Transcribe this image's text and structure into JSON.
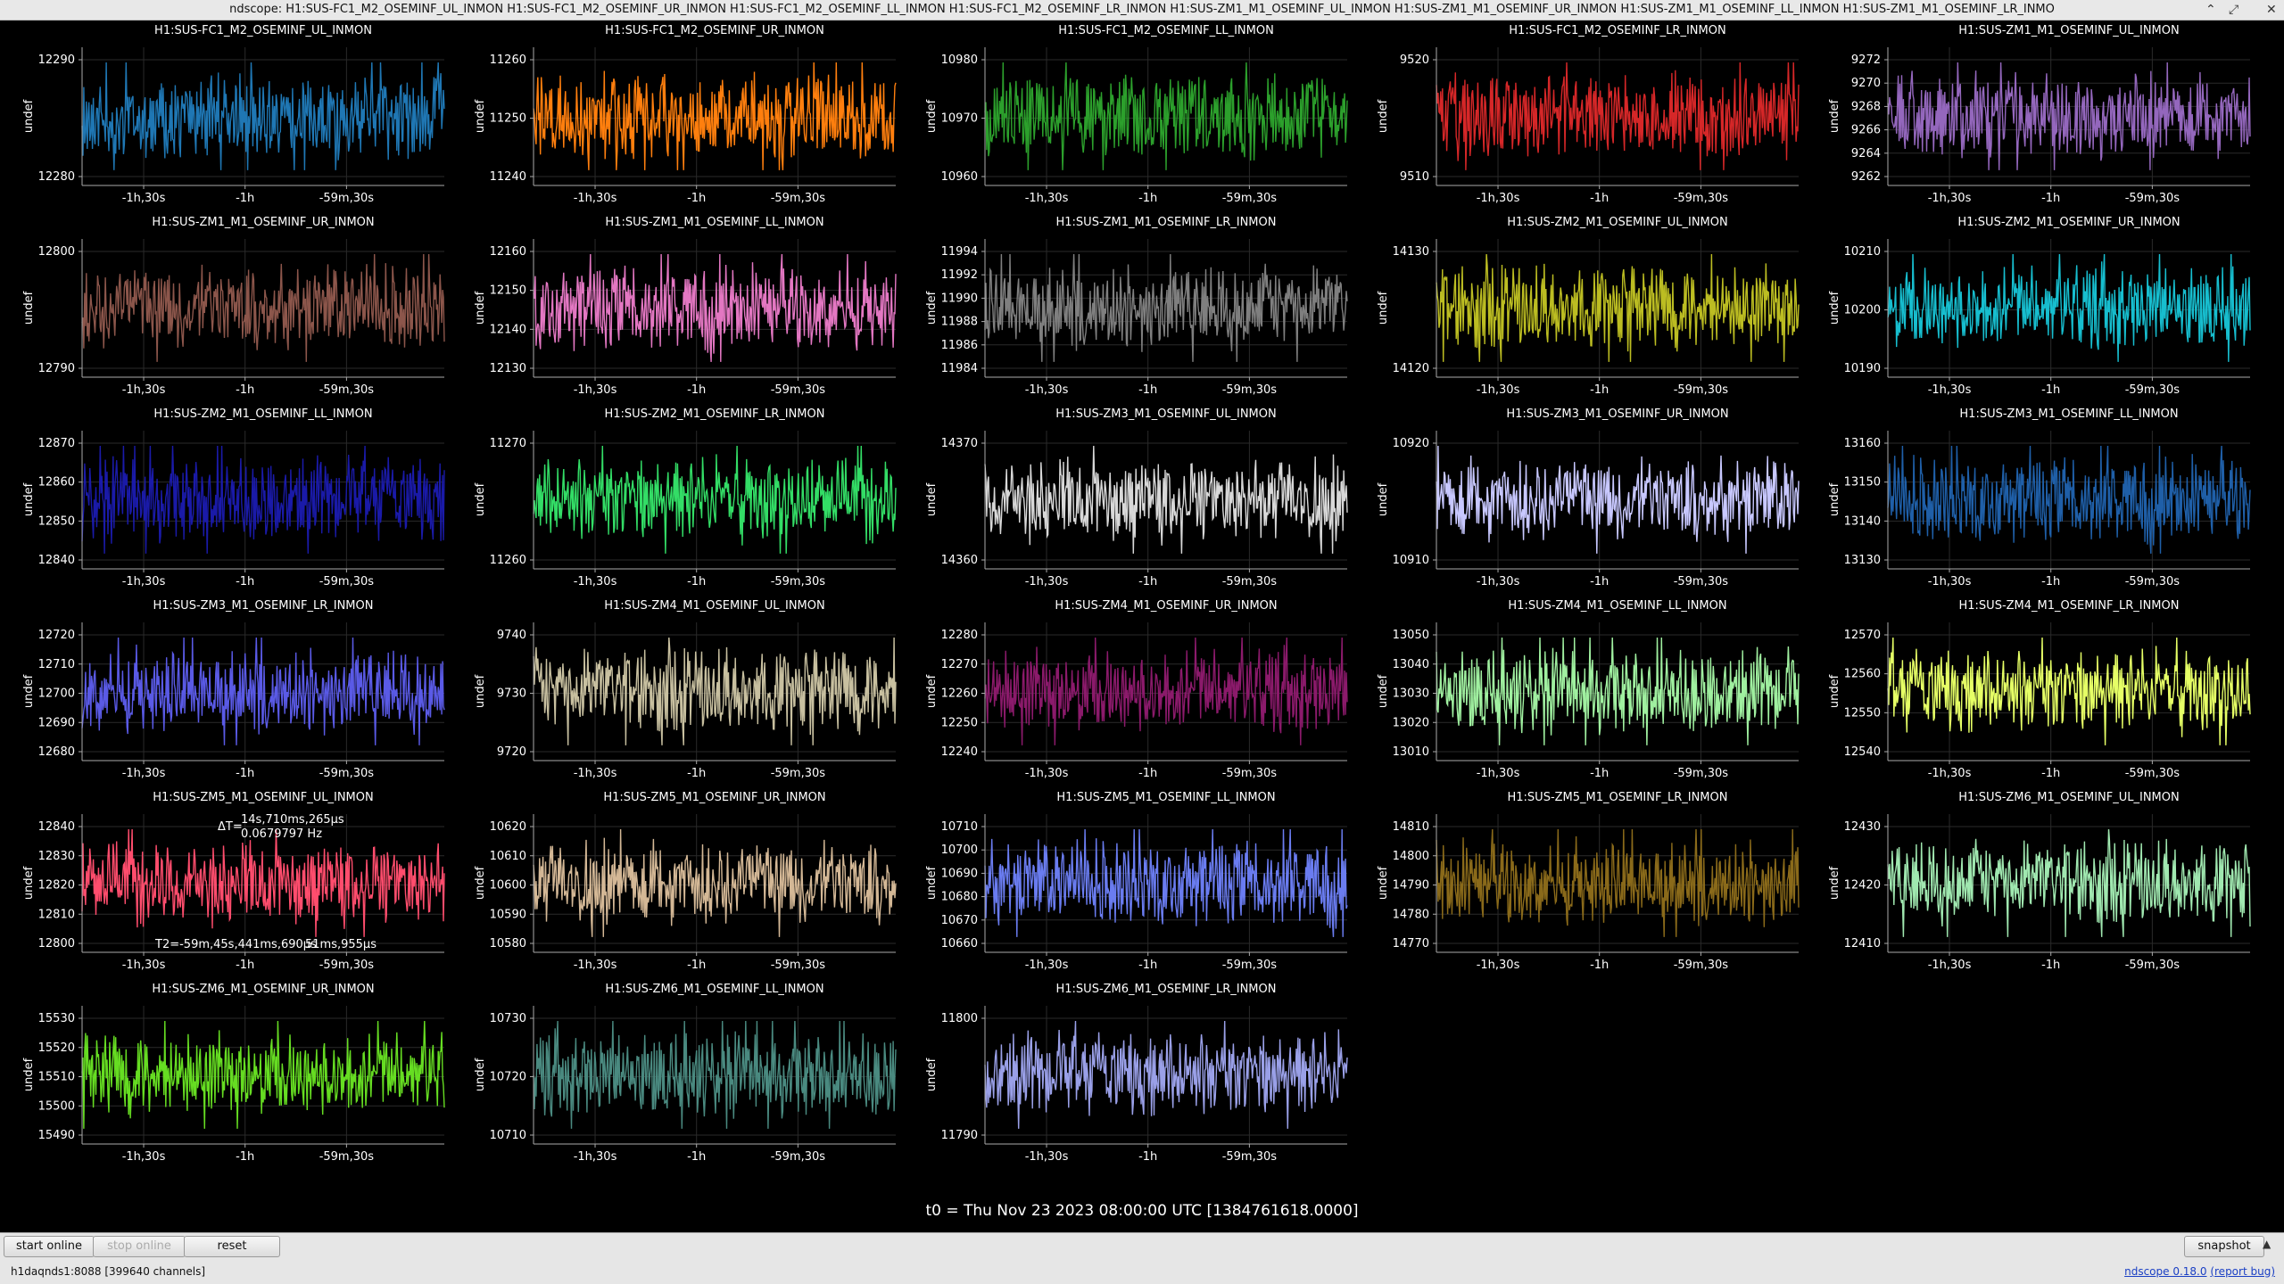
{
  "window": {
    "title": "ndscope: H1:SUS-FC1_M2_OSEMINF_UL_INMON H1:SUS-FC1_M2_OSEMINF_UR_INMON H1:SUS-FC1_M2_OSEMINF_LL_INMON H1:SUS-FC1_M2_OSEMINF_LR_INMON H1:SUS-ZM1_M1_OSEMINF_UL_INMON H1:SUS-ZM1_M1_OSEMINF_UR_INMON H1:SUS-ZM1_M1_OSEMINF_LL_INMON H1:SUS-ZM1_M1_OSEMINF_LR_INMO",
    "controls": [
      "⌃",
      "⤢",
      "✕"
    ]
  },
  "ylabel": "undef",
  "plots": [
    {
      "name": "H1:SUS-FC1_M2_OSEMINF_UL_INMON",
      "color": "#1f77b4",
      "yticks": [
        "12290",
        "12280"
      ],
      "xticks": [
        "-1h,30s",
        "-1h",
        "-59m,30s"
      ]
    },
    {
      "name": "H1:SUS-FC1_M2_OSEMINF_UR_INMON",
      "color": "#ff7f0e",
      "yticks": [
        "11260",
        "11250",
        "11240"
      ],
      "xticks": [
        "-1h,30s",
        "-1h",
        "-59m,30s"
      ]
    },
    {
      "name": "H1:SUS-FC1_M2_OSEMINF_LL_INMON",
      "color": "#2ca02c",
      "yticks": [
        "10980",
        "10970",
        "10960"
      ],
      "xticks": [
        "-1h,30s",
        "-1h",
        "-59m,30s"
      ]
    },
    {
      "name": "H1:SUS-FC1_M2_OSEMINF_LR_INMON",
      "color": "#d62728",
      "yticks": [
        "9520",
        "9510"
      ],
      "xticks": [
        "-1h,30s",
        "-1h",
        "-59m,30s"
      ]
    },
    {
      "name": "H1:SUS-ZM1_M1_OSEMINF_UL_INMON",
      "color": "#9467bd",
      "yticks": [
        "9272",
        "9270",
        "9268",
        "9266",
        "9264",
        "9262"
      ],
      "xticks": [
        "-1h,30s",
        "-1h",
        "-59m,30s"
      ]
    },
    {
      "name": "H1:SUS-ZM1_M1_OSEMINF_UR_INMON",
      "color": "#8c564b",
      "yticks": [
        "12800",
        "12790"
      ],
      "xticks": [
        "-1h,30s",
        "-1h",
        "-59m,30s"
      ]
    },
    {
      "name": "H1:SUS-ZM1_M1_OSEMINF_LL_INMON",
      "color": "#e377c2",
      "yticks": [
        "12160",
        "12150",
        "12140",
        "12130"
      ],
      "xticks": [
        "-1h,30s",
        "-1h",
        "-59m,30s"
      ]
    },
    {
      "name": "H1:SUS-ZM1_M1_OSEMINF_LR_INMON",
      "color": "#7f7f7f",
      "yticks": [
        "11994",
        "11992",
        "11990",
        "11988",
        "11986",
        "11984"
      ],
      "xticks": [
        "-1h,30s",
        "-1h",
        "-59m,30s"
      ]
    },
    {
      "name": "H1:SUS-ZM2_M1_OSEMINF_UL_INMON",
      "color": "#bcbd22",
      "yticks": [
        "14130",
        "14120"
      ],
      "xticks": [
        "-1h,30s",
        "-1h",
        "-59m,30s"
      ]
    },
    {
      "name": "H1:SUS-ZM2_M1_OSEMINF_UR_INMON",
      "color": "#17becf",
      "yticks": [
        "10210",
        "10200",
        "10190"
      ],
      "xticks": [
        "-1h,30s",
        "-1h",
        "-59m,30s"
      ]
    },
    {
      "name": "H1:SUS-ZM2_M1_OSEMINF_LL_INMON",
      "color": "#1a1aa8",
      "yticks": [
        "12870",
        "12860",
        "12850",
        "12840"
      ],
      "xticks": [
        "-1h,30s",
        "-1h",
        "-59m,30s"
      ]
    },
    {
      "name": "H1:SUS-ZM2_M1_OSEMINF_LR_INMON",
      "color": "#33dd66",
      "yticks": [
        "11270",
        "11260"
      ],
      "xticks": [
        "-1h,30s",
        "-1h",
        "-59m,30s"
      ]
    },
    {
      "name": "H1:SUS-ZM3_M1_OSEMINF_UL_INMON",
      "color": "#d8d8d8",
      "yticks": [
        "14370",
        "14360"
      ],
      "xticks": [
        "-1h,30s",
        "-1h",
        "-59m,30s"
      ]
    },
    {
      "name": "H1:SUS-ZM3_M1_OSEMINF_UR_INMON",
      "color": "#c8c8ff",
      "yticks": [
        "10920",
        "10910"
      ],
      "xticks": [
        "-1h,30s",
        "-1h",
        "-59m,30s"
      ]
    },
    {
      "name": "H1:SUS-ZM3_M1_OSEMINF_LL_INMON",
      "color": "#1f5fa8",
      "yticks": [
        "13160",
        "13150",
        "13140",
        "13130"
      ],
      "xticks": [
        "-1h,30s",
        "-1h",
        "-59m,30s"
      ]
    },
    {
      "name": "H1:SUS-ZM3_M1_OSEMINF_LR_INMON",
      "color": "#5a5ae6",
      "yticks": [
        "12720",
        "12710",
        "12700",
        "12690",
        "12680"
      ],
      "xticks": [
        "-1h,30s",
        "-1h",
        "-59m,30s"
      ]
    },
    {
      "name": "H1:SUS-ZM4_M1_OSEMINF_UL_INMON",
      "color": "#c8c0a0",
      "yticks": [
        "9740",
        "9730",
        "9720"
      ],
      "xticks": [
        "-1h,30s",
        "-1h",
        "-59m,30s"
      ]
    },
    {
      "name": "H1:SUS-ZM4_M1_OSEMINF_UR_INMON",
      "color": "#8b1a6b",
      "yticks": [
        "12280",
        "12270",
        "12260",
        "12250",
        "12240"
      ],
      "xticks": [
        "-1h,30s",
        "-1h",
        "-59m,30s"
      ]
    },
    {
      "name": "H1:SUS-ZM4_M1_OSEMINF_LL_INMON",
      "color": "#a0f0a0",
      "yticks": [
        "13050",
        "13040",
        "13030",
        "13020",
        "13010"
      ],
      "xticks": [
        "-1h,30s",
        "-1h",
        "-59m,30s"
      ]
    },
    {
      "name": "H1:SUS-ZM4_M1_OSEMINF_LR_INMON",
      "color": "#e6ff66",
      "yticks": [
        "12570",
        "12560",
        "12550",
        "12540"
      ],
      "xticks": [
        "-1h,30s",
        "-1h",
        "-59m,30s"
      ]
    },
    {
      "name": "H1:SUS-ZM5_M1_OSEMINF_UL_INMON",
      "color": "#ff4d6d",
      "yticks": [
        "12840",
        "12830",
        "12820",
        "12810",
        "12800"
      ],
      "xticks": [
        "-1h,30s",
        "-1h",
        "-59m,30s"
      ]
    },
    {
      "name": "H1:SUS-ZM5_M1_OSEMINF_UR_INMON",
      "color": "#d4b896",
      "yticks": [
        "10620",
        "10610",
        "10600",
        "10590",
        "10580"
      ],
      "xticks": [
        "-1h,30s",
        "-1h",
        "-59m,30s"
      ]
    },
    {
      "name": "H1:SUS-ZM5_M1_OSEMINF_LL_INMON",
      "color": "#6a7cf0",
      "yticks": [
        "10710",
        "10700",
        "10690",
        "10680",
        "10670",
        "10660"
      ],
      "xticks": [
        "-1h,30s",
        "-1h",
        "-59m,30s"
      ]
    },
    {
      "name": "H1:SUS-ZM5_M1_OSEMINF_LR_INMON",
      "color": "#8a6a1a",
      "yticks": [
        "14810",
        "14800",
        "14790",
        "14780",
        "14770"
      ],
      "xticks": [
        "-1h,30s",
        "-1h",
        "-59m,30s"
      ]
    },
    {
      "name": "H1:SUS-ZM6_M1_OSEMINF_UL_INMON",
      "color": "#a0e8b0",
      "yticks": [
        "12430",
        "12420",
        "12410"
      ],
      "xticks": [
        "-1h,30s",
        "-1h",
        "-59m,30s"
      ]
    },
    {
      "name": "H1:SUS-ZM6_M1_OSEMINF_UR_INMON",
      "color": "#66dd22",
      "yticks": [
        "15530",
        "15520",
        "15510",
        "15500",
        "15490"
      ],
      "xticks": [
        "-1h,30s",
        "-1h",
        "-59m,30s"
      ]
    },
    {
      "name": "H1:SUS-ZM6_M1_OSEMINF_LL_INMON",
      "color": "#4a8a80",
      "yticks": [
        "10730",
        "10720",
        "10710"
      ],
      "xticks": [
        "-1h,30s",
        "-1h",
        "-59m,30s"
      ]
    },
    {
      "name": "H1:SUS-ZM6_M1_OSEMINF_LR_INMON",
      "color": "#9aa0e8",
      "yticks": [
        "11800",
        "11790"
      ],
      "xticks": [
        "-1h,30s",
        "-1h",
        "-59m,30s"
      ]
    }
  ],
  "cursor": {
    "dt_label": "ΔT=",
    "dt_value": "14s,710ms,265µs",
    "freq": "0.0679797 Hz",
    "t2": "T2=-59m,45s,441ms,690µs",
    "t2_tail": "51ms,955µs"
  },
  "t0": "t0 = Thu Nov 23 2023 08:00:00 UTC [1384761618.0000]",
  "toolbar": {
    "start_online": "start online",
    "stop_online": "stop online",
    "reset": "reset",
    "snapshot": "snapshot",
    "menu_arrow": "▲"
  },
  "status": {
    "server": "h1daqnds1:8088  [399640 channels]",
    "version": "ndscope 0.18.0",
    "report": "(report bug)"
  }
}
